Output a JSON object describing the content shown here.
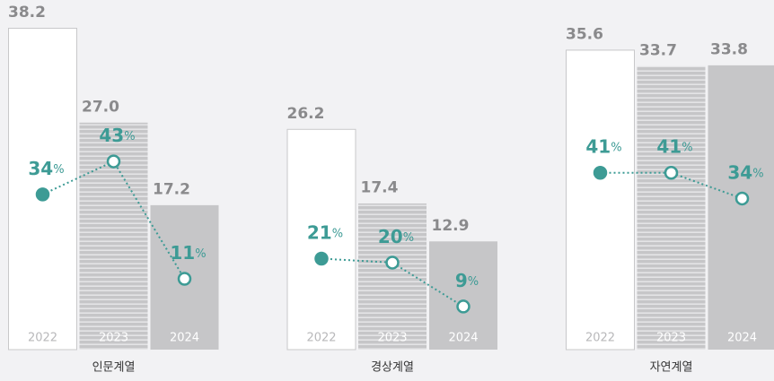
{
  "chart_data": [
    {
      "type": "bar",
      "title": "인문계열",
      "categories": [
        "2022",
        "2023",
        "2024"
      ],
      "unit": "%",
      "ylim": [
        0,
        41.5
      ],
      "y2lim": [
        -8.3,
        87
      ],
      "series": [
        {
          "colors": [
            "#ffffff",
            "#c6c6c8",
            "#c6c6c8"
          ],
          "values": [
            38.2,
            27.0,
            17.2
          ],
          "value_labels": [
            "38.2",
            "27.0",
            "17.2"
          ]
        },
        {
          "type": "line",
          "axis": "y2",
          "color": "#3d9b95",
          "values": [
            34,
            43,
            11
          ]
        }
      ]
    },
    {
      "type": "bar",
      "title": "경상계열",
      "categories": [
        "2022",
        "2023",
        "2024"
      ],
      "unit": "%",
      "ylim": [
        0,
        41.5
      ],
      "y2lim": [
        -1.8,
        85.8
      ],
      "series": [
        {
          "colors": [
            "#ffffff",
            "#c6c6c8",
            "#c6c6c8"
          ],
          "values": [
            26.2,
            17.4,
            12.9
          ],
          "value_labels": [
            "26.2",
            "17.4",
            "12.9"
          ]
        },
        {
          "type": "line",
          "axis": "y2",
          "color": "#3d9b95",
          "values": [
            21,
            20,
            9
          ]
        }
      ]
    },
    {
      "type": "bar",
      "title": "자연계열",
      "categories": [
        "2022",
        "2023",
        "2024"
      ],
      "unit": "%",
      "ylim": [
        0,
        41.5
      ],
      "y2lim": [
        -7.1,
        88
      ],
      "series": [
        {
          "colors": [
            "#ffffff",
            "#c6c6c8",
            "#c6c6c8"
          ],
          "values": [
            35.6,
            33.7,
            33.8
          ],
          "value_labels": [
            "35.6",
            "33.7",
            "33.8"
          ]
        },
        {
          "type": "line",
          "axis": "y2",
          "color": "#3d9b95",
          "values": [
            41,
            41,
            34
          ]
        }
      ]
    }
  ]
}
